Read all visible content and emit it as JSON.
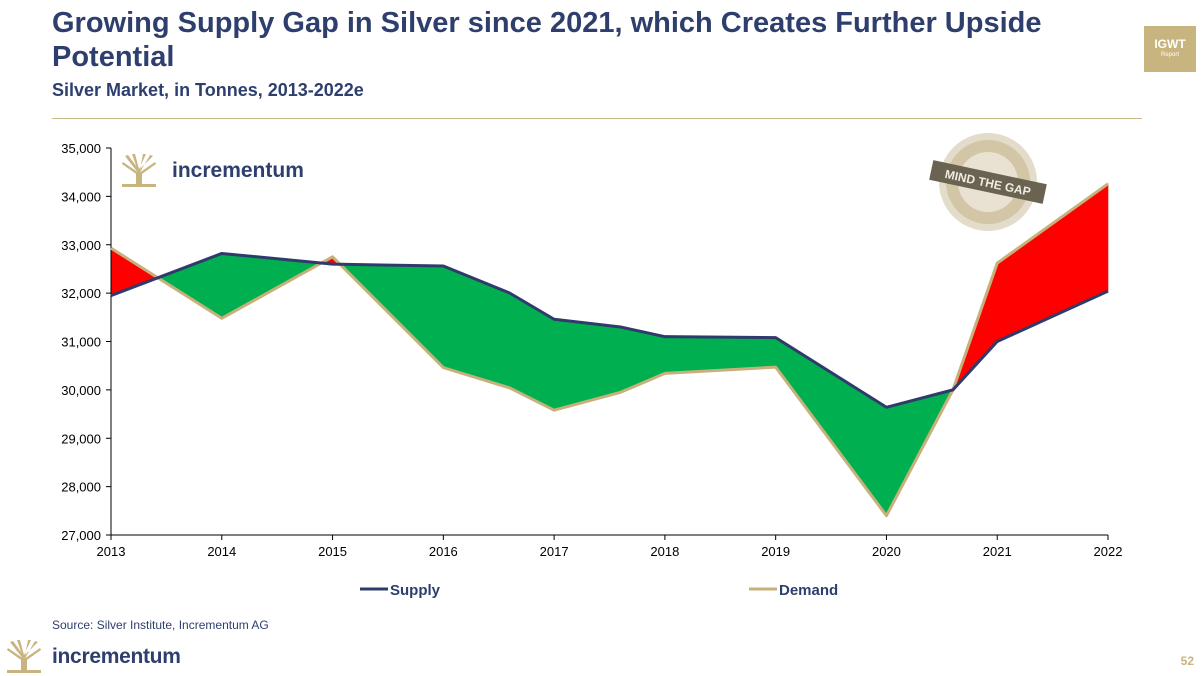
{
  "header": {
    "title": "Growing Supply Gap in Silver since 2021, which Creates Further Upside Potential",
    "subtitle": "Silver Market, in Tonnes, 2013-2022e"
  },
  "badge": {
    "line1": "IGWT",
    "line2": "Report"
  },
  "chart_logo_text": "incrementum",
  "stamp_text": "MIND THE GAP",
  "colors": {
    "supply": "#2e3b6b",
    "demand": "#c8b07c",
    "deficit": "#ff0000",
    "surplus": "#00b050",
    "title": "#2e3f6e"
  },
  "chart_data": {
    "type": "area",
    "title": "Silver Market, in Tonnes, 2013-2022e",
    "xlabel": "",
    "ylabel": "",
    "ylim": [
      27000,
      35000
    ],
    "yticks": [
      27000,
      28000,
      29000,
      30000,
      31000,
      32000,
      33000,
      34000,
      35000
    ],
    "ytick_labels": [
      "27,000",
      "28,000",
      "29,000",
      "30,000",
      "31,000",
      "32,000",
      "33,000",
      "34,000",
      "35,000"
    ],
    "xticks": [
      2013,
      2014,
      2015,
      2016,
      2017,
      2018,
      2019,
      2020,
      2021,
      2022
    ],
    "xtick_labels": [
      "2013",
      "2014",
      "2015",
      "2016",
      "2017",
      "2018",
      "2019",
      "2020",
      "2021",
      "2022"
    ],
    "series": [
      {
        "name": "Supply",
        "x": [
          2013,
          2014,
          2015,
          2016,
          2016.6,
          2017,
          2017.6,
          2018,
          2019,
          2020,
          2020.6,
          2021,
          2022
        ],
        "values": [
          31950,
          32820,
          32600,
          32560,
          32000,
          31460,
          31300,
          31100,
          31080,
          29640,
          30000,
          31000,
          32040
        ]
      },
      {
        "name": "Demand",
        "x": [
          2013,
          2014,
          2015,
          2016,
          2016.6,
          2017,
          2017.6,
          2018,
          2019,
          2020,
          2020.6,
          2021,
          2022
        ],
        "values": [
          32930,
          31480,
          32750,
          30460,
          30040,
          29580,
          29950,
          30340,
          30470,
          27400,
          30000,
          32620,
          34260
        ]
      }
    ],
    "legend": {
      "position": "bottom-center",
      "entries": [
        "Supply",
        "Demand"
      ]
    }
  },
  "footer": {
    "source": "Source: Silver Institute, Incrementum AG",
    "brand": "incrementum",
    "page_number": "52"
  }
}
